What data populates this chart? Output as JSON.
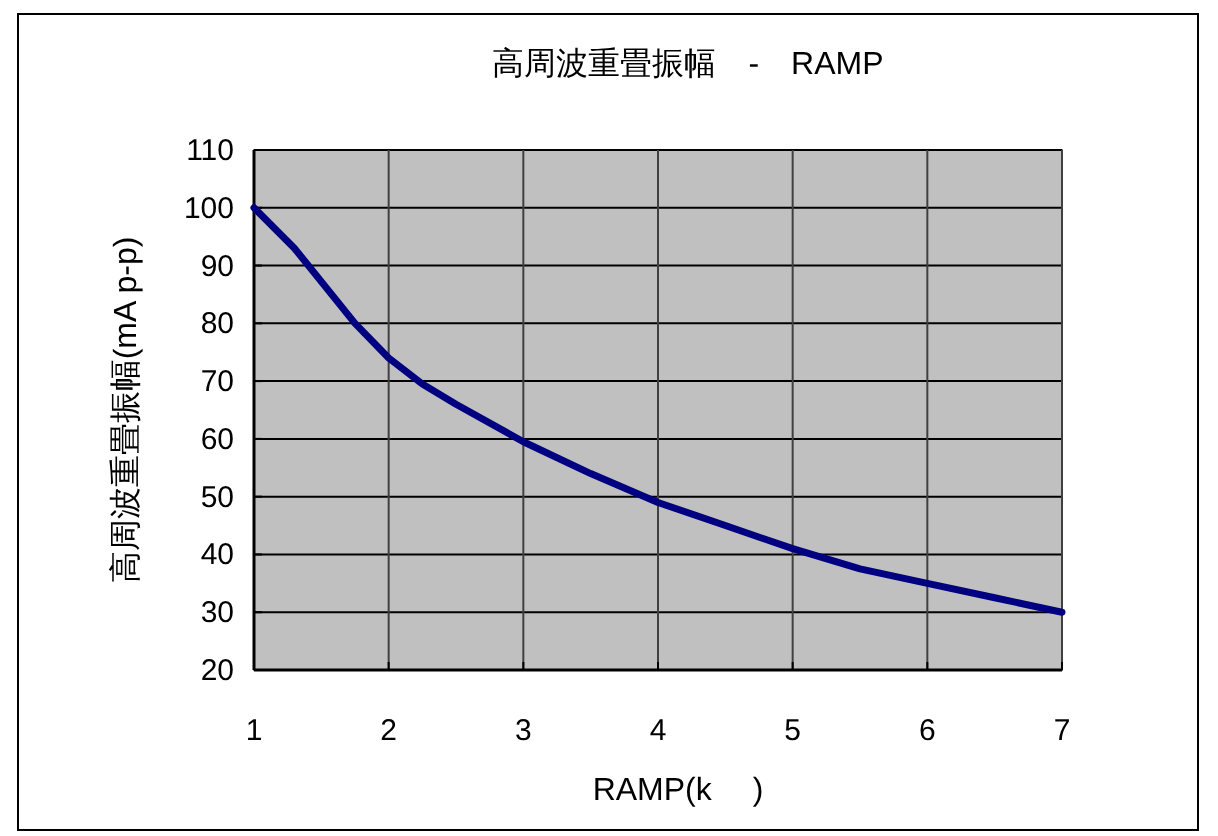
{
  "chart_data": {
    "type": "line",
    "title": "高周波重畳振幅　-　RAMP",
    "xlabel": "RAMP(k　 )",
    "ylabel": "高周波重畳振幅(mA p-p)",
    "x": [
      1,
      1.3,
      1.75,
      2,
      2.25,
      2.5,
      3,
      3.5,
      4,
      4.5,
      5,
      5.5,
      6,
      6.5,
      7
    ],
    "series": [
      {
        "color": "#000080",
        "values": [
          100,
          93,
          80,
          74,
          69.5,
          66,
          59.5,
          54,
          49,
          45,
          41,
          37.5,
          35,
          32.5,
          30
        ]
      }
    ],
    "xlim": [
      1,
      7
    ],
    "xticks": [
      1,
      2,
      3,
      4,
      5,
      6,
      7
    ],
    "ylim": [
      20,
      110
    ],
    "yticks": [
      20,
      30,
      40,
      50,
      60,
      70,
      80,
      90,
      100,
      110
    ],
    "grid": true,
    "marker": "none",
    "line_style": "solid"
  }
}
